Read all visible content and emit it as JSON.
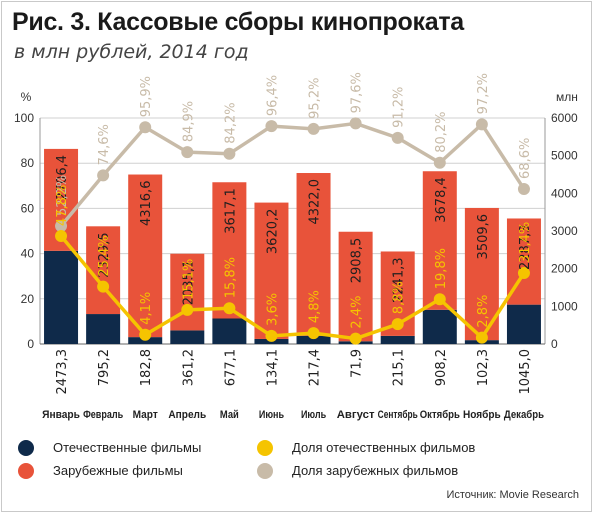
{
  "title": "Рис. 3. Кассовые сборы кинопроката",
  "subtitle": "в млн рублей, 2014 год",
  "source": "Источник: Movie Research",
  "legend": {
    "domestic_films": "Отечественные фильмы",
    "foreign_films": "Зарубежные фильмы",
    "domestic_share": "Доля отечественных фильмов",
    "foreign_share": "Доля зарубежных фильмов"
  },
  "colors": {
    "domestic": "#0f2a4a",
    "foreign": "#e8533a",
    "domestic_share": "#f5c400",
    "foreign_share": "#c8bba8"
  },
  "chart_data": {
    "type": "bar",
    "stacked": true,
    "categories": [
      "Январь",
      "Февраль",
      "Март",
      "Апрель",
      "Май",
      "Июнь",
      "Июль",
      "Август",
      "Сентябрь",
      "Октябрь",
      "Ноябрь",
      "Декабрь"
    ],
    "ylabel_left": "%",
    "ylabel_right": "млн",
    "ylim_left": [
      0,
      100
    ],
    "ylim_right": [
      0,
      6000
    ],
    "yticks_left": [
      0,
      20,
      40,
      60,
      80,
      100
    ],
    "yticks_right": [
      0,
      1000,
      2000,
      3000,
      4000,
      5000,
      6000
    ],
    "series": [
      {
        "name": "Отечественные фильмы",
        "type": "bar",
        "axis": "right",
        "values": [
          2473.3,
          795.2,
          182.8,
          361.2,
          677.1,
          134.1,
          217.4,
          71.9,
          215.1,
          908.2,
          102.3,
          1045.0
        ],
        "labels": [
          "2473,3",
          "795,2",
          "182,8",
          "361,2",
          "677,1",
          "134,1",
          "217,4",
          "71,9",
          "215,1",
          "908,2",
          "102,3",
          "1045,0"
        ]
      },
      {
        "name": "Зарубежные фильмы",
        "type": "bar",
        "axis": "right",
        "values": [
          2706.4,
          2329.5,
          4316.6,
          2035.1,
          3617.1,
          3620.2,
          4322.0,
          2908.5,
          2241.3,
          3678.4,
          3509.6,
          2287.3
        ],
        "labels": [
          "2706,4",
          "2329,5",
          "4316,6",
          "2035,1",
          "3617,1",
          "3620,2",
          "4322,0",
          "2908,5",
          "2241,3",
          "3678,4",
          "3509,6",
          "2287,3"
        ]
      },
      {
        "name": "Доля отечественных фильмов",
        "type": "line",
        "axis": "left",
        "values": [
          47.8,
          25.4,
          4.1,
          15.1,
          15.8,
          3.6,
          4.8,
          2.4,
          8.8,
          19.8,
          2.8,
          31.4
        ],
        "labels": [
          "47,8%",
          "25,4%",
          "4,1%",
          "15,1%",
          "15,8%",
          "3,6%",
          "4,8%",
          "2,4%",
          "8,8%",
          "19,8%",
          "2,8%",
          "31,4%"
        ]
      },
      {
        "name": "Доля зарубежных фильмов",
        "type": "line",
        "axis": "left",
        "values": [
          52.2,
          74.6,
          95.9,
          84.9,
          84.2,
          96.4,
          95.2,
          97.6,
          91.2,
          80.2,
          97.2,
          68.6
        ],
        "labels": [
          "52,2%",
          "74,6%",
          "95,9%",
          "84,9%",
          "84,2%",
          "96,4%",
          "95,2%",
          "97,6%",
          "91,2%",
          "80,2%",
          "97,2%",
          "68,6%"
        ]
      }
    ],
    "grid": true,
    "legend_position": "bottom"
  }
}
